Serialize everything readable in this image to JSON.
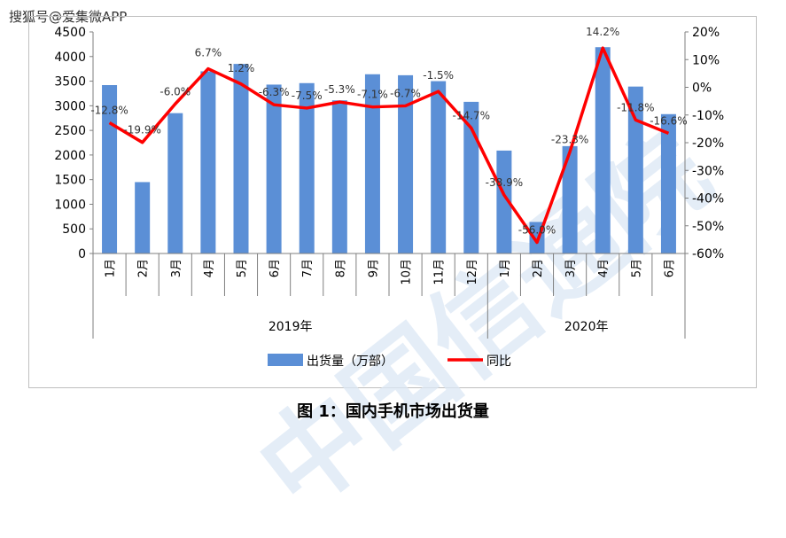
{
  "watermark": {
    "label": "搜狐号@爱集微APP"
  },
  "caption": {
    "text": "图 1：国内手机市场出货量"
  },
  "colors": {
    "bar": "#5b8fd6",
    "line": "#ff0000",
    "grid": "#d9d9d9"
  },
  "chart_data": {
    "type": "bar",
    "categories": [
      "1月",
      "2月",
      "3月",
      "4月",
      "5月",
      "6月",
      "7月",
      "8月",
      "9月",
      "10月",
      "11月",
      "12月",
      "1月",
      "2月",
      "3月",
      "4月",
      "5月",
      "6月"
    ],
    "groups": [
      {
        "label": "2019年",
        "count": 12
      },
      {
        "label": "2020年",
        "count": 6
      }
    ],
    "series": [
      {
        "name": "出货量（万部）",
        "kind": "bar",
        "axis": "left",
        "values": [
          3420,
          1450,
          2850,
          3700,
          3850,
          3430,
          3460,
          3110,
          3640,
          3620,
          3500,
          3080,
          2090,
          640,
          2180,
          4190,
          3390,
          2830
        ]
      },
      {
        "name": "同比",
        "kind": "line",
        "axis": "right",
        "values": [
          -12.8,
          -19.9,
          -6.0,
          6.7,
          1.2,
          -6.3,
          -7.5,
          -5.3,
          -7.1,
          -6.7,
          -1.5,
          -14.7,
          -38.9,
          -56.0,
          -23.3,
          14.2,
          -11.8,
          -16.6
        ],
        "labels": [
          "-12.8%",
          "-19.9%",
          "-6.0%",
          "6.7%",
          "1.2%",
          "-6.3%",
          "-7.5%",
          "-5.3%",
          "-7.1%",
          "-6.7%",
          "-1.5%",
          "-14.7%",
          "-38.9%",
          "-56.0%",
          "-23.3%",
          "14.2%",
          "-11.8%",
          "-16.6%"
        ]
      }
    ],
    "y_left": {
      "min": 0,
      "max": 4500,
      "step": 500,
      "ticks": [
        "0",
        "500",
        "1000",
        "1500",
        "2000",
        "2500",
        "3000",
        "3500",
        "4000",
        "4500"
      ]
    },
    "y_right": {
      "min": -60,
      "max": 20,
      "step": 10,
      "ticks": [
        "-60%",
        "-50%",
        "-40%",
        "-30%",
        "-20%",
        "-10%",
        "0%",
        "10%",
        "20%"
      ]
    },
    "grid": false,
    "legend_position": "bottom"
  }
}
